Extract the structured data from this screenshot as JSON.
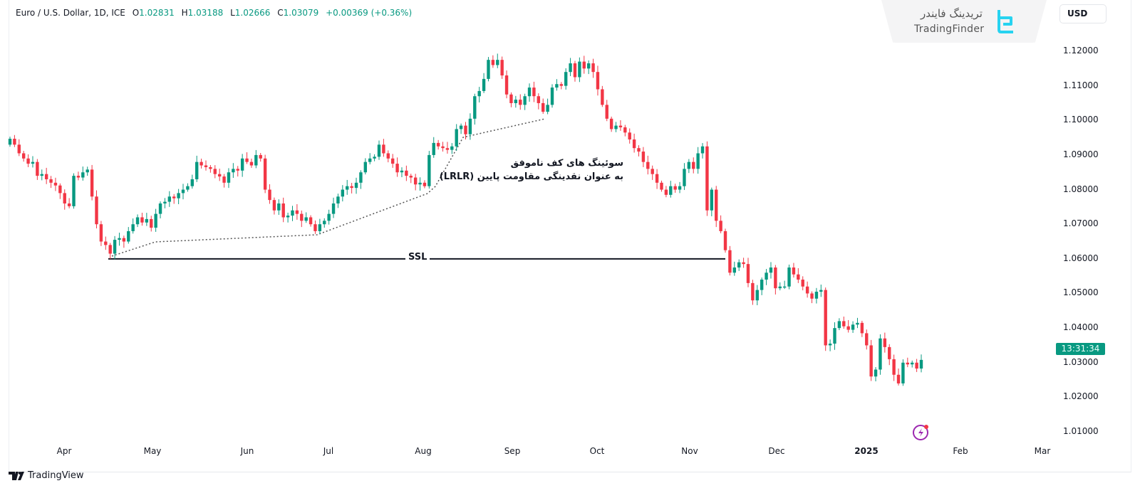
{
  "legend": {
    "symbol": "Euro / U.S. Dollar, 1D, ICE",
    "open_label": "O",
    "open": "1.02831",
    "high_label": "H",
    "high": "1.03188",
    "low_label": "L",
    "low": "1.02666",
    "close_label": "C",
    "close": "1.03079",
    "change": "+0.00369 (+0.36%)"
  },
  "watermark": {
    "name_fa": "تریدینگ فایندر",
    "name_en": "TradingFinder"
  },
  "currency_button": "USD",
  "countdown": "13:31:34",
  "footer_brand": "TradingView",
  "colors": {
    "up": "#089981",
    "down": "#f23645",
    "accent_icon": "#9c27b0"
  },
  "chart_data": {
    "type": "candlestick",
    "title": "",
    "price_ticks": [
      "1.12000",
      "1.11000",
      "1.10000",
      "1.09000",
      "1.08000",
      "1.07000",
      "1.06000",
      "1.05000",
      "1.04000",
      "1.03000",
      "1.02000",
      "1.01000"
    ],
    "ylim": [
      1.01,
      1.12
    ],
    "time_ticks": [
      {
        "label": "Apr"
      },
      {
        "label": "May"
      },
      {
        "label": "Jun"
      },
      {
        "label": "Jul"
      },
      {
        "label": "Aug"
      },
      {
        "label": "Sep"
      },
      {
        "label": "Oct"
      },
      {
        "label": "Nov"
      },
      {
        "label": "Dec"
      },
      {
        "label": "2025",
        "bold": true
      },
      {
        "label": "Feb"
      },
      {
        "label": "Mar"
      }
    ],
    "first_open": 1.093,
    "closes": [
      1.0947,
      1.093,
      1.0905,
      1.089,
      1.0875,
      1.088,
      1.084,
      1.0845,
      1.083,
      1.082,
      1.0812,
      1.079,
      1.076,
      1.0752,
      1.084,
      1.0835,
      1.085,
      1.0858,
      1.078,
      1.07,
      1.065,
      1.064,
      1.0615,
      1.0655,
      1.066,
      1.065,
      1.068,
      1.07,
      1.072,
      1.0705,
      1.0715,
      1.069,
      1.073,
      1.076,
      1.0765,
      1.078,
      1.0775,
      1.079,
      1.08,
      1.081,
      1.083,
      1.088,
      1.087,
      1.0865,
      1.086,
      1.0845,
      1.0838,
      1.082,
      1.085,
      1.086,
      1.0855,
      1.089,
      1.088,
      1.087,
      1.09,
      1.089,
      1.08,
      1.077,
      1.074,
      1.076,
      1.072,
      1.0725,
      1.074,
      1.073,
      1.071,
      1.072,
      1.07,
      1.068,
      1.07,
      1.071,
      1.073,
      1.076,
      1.078,
      1.08,
      1.081,
      1.0805,
      1.082,
      1.085,
      1.088,
      1.089,
      1.0895,
      1.093,
      1.0905,
      1.089,
      1.0875,
      1.085,
      1.0855,
      1.084,
      1.0835,
      1.0815,
      1.082,
      1.081,
      1.09,
      1.0935,
      1.0925,
      1.092,
      1.0915,
      1.0925,
      1.0975,
      1.0985,
      1.096,
      1.1005,
      1.107,
      1.1085,
      1.112,
      1.1175,
      1.116,
      1.1175,
      1.113,
      1.1075,
      1.105,
      1.106,
      1.1045,
      1.107,
      1.1095,
      1.107,
      1.105,
      1.1025,
      1.1045,
      1.1095,
      1.1105,
      1.11,
      1.114,
      1.1165,
      1.1125,
      1.117,
      1.115,
      1.1165,
      1.114,
      1.109,
      1.1045,
      1.1005,
      1.0975,
      1.0985,
      1.098,
      1.0965,
      1.0945,
      1.092,
      1.091,
      1.088,
      1.086,
      1.0845,
      1.082,
      1.08,
      1.0785,
      1.081,
      1.08,
      1.081,
      1.086,
      1.088,
      1.086,
      1.0905,
      1.0925,
      1.074,
      1.08,
      1.071,
      1.068,
      1.0625,
      1.056,
      1.0575,
      1.059,
      1.0585,
      1.053,
      1.048,
      1.051,
      1.054,
      1.056,
      1.0575,
      1.0515,
      1.052,
      1.052,
      1.0575,
      1.0555,
      1.054,
      1.052,
      1.05,
      1.0485,
      1.0505,
      1.051,
      1.035,
      1.0355,
      1.04,
      1.042,
      1.0405,
      1.0395,
      1.041,
      1.0415,
      1.0385,
      1.035,
      1.026,
      1.028,
      1.037,
      1.0345,
      1.031,
      1.0265,
      1.024,
      1.03,
      1.0295,
      1.03,
      1.0283,
      1.0308
    ],
    "annotations": {
      "ssl_label": "SSL",
      "ssl_price": 1.06,
      "note_line1": "سوئینگ های کف ناموفق",
      "note_line2": "به عنوان نقدینگی مقاومت پایین (LRLR)"
    }
  }
}
